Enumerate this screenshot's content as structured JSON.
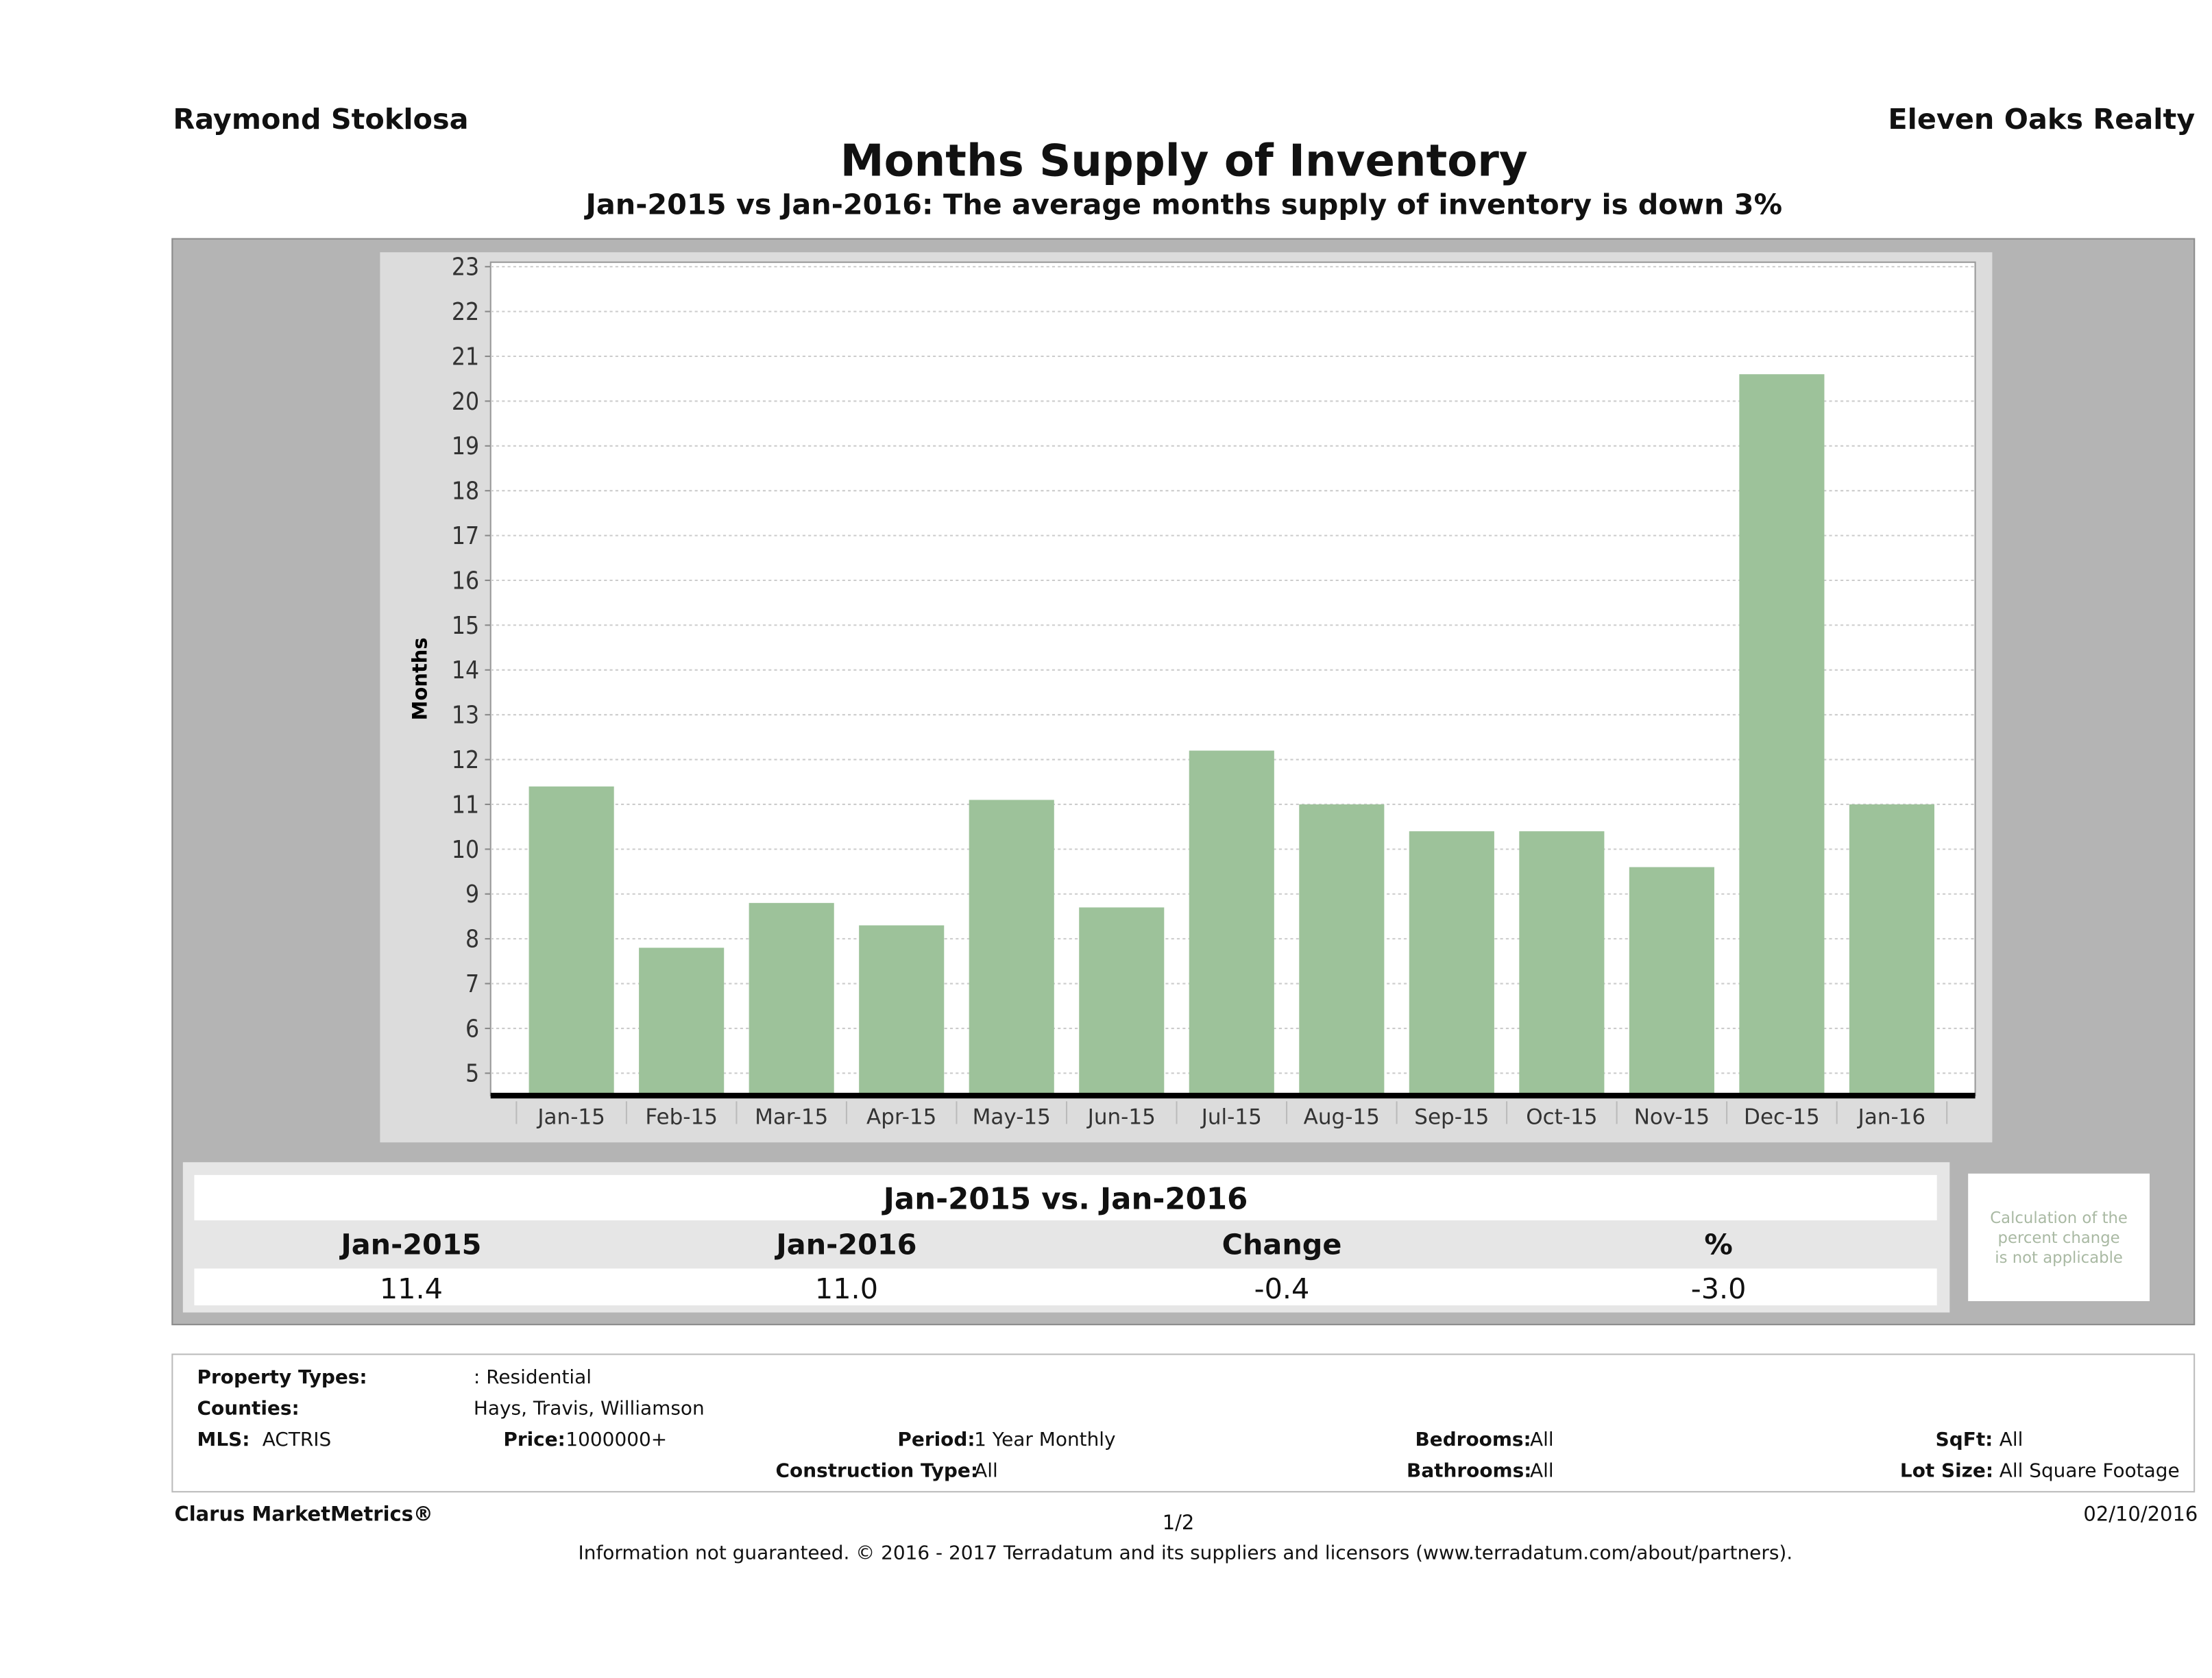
{
  "header": {
    "agent": "Raymond Stoklosa",
    "brokerage": "Eleven Oaks Realty",
    "title": "Months Supply of Inventory",
    "subtitle": "Jan-2015 vs Jan-2016: The average months supply of inventory is down 3%"
  },
  "chart_data": {
    "type": "bar",
    "title": "",
    "xlabel": "",
    "ylabel": "Months",
    "ylim": [
      4.5,
      23.1
    ],
    "yticks": [
      5,
      6,
      7,
      8,
      9,
      10,
      11,
      12,
      13,
      14,
      15,
      16,
      17,
      18,
      19,
      20,
      21,
      22,
      23
    ],
    "grid": true,
    "categories": [
      "Jan-15",
      "Feb-15",
      "Mar-15",
      "Apr-15",
      "May-15",
      "Jun-15",
      "Jul-15",
      "Aug-15",
      "Sep-15",
      "Oct-15",
      "Nov-15",
      "Dec-15",
      "Jan-16"
    ],
    "values": [
      11.4,
      7.8,
      8.8,
      8.3,
      11.1,
      8.7,
      12.2,
      11.0,
      10.4,
      10.4,
      9.6,
      20.6,
      11.0
    ],
    "bar_color": "#9dc29a"
  },
  "summary": {
    "heading": "Jan-2015 vs. Jan-2016",
    "columns": [
      "Jan-2015",
      "Jan-2016",
      "Change",
      "%"
    ],
    "values": [
      "11.4",
      "11.0",
      "-0.4",
      "-3.0"
    ],
    "note_lines": [
      "Calculation of the",
      "percent change",
      "is not applicable"
    ]
  },
  "info": {
    "property_types_label": "Property Types:",
    "property_types": ": Residential",
    "counties_label": "Counties:",
    "counties": "Hays, Travis, Williamson",
    "mls_label": "MLS:",
    "mls": "ACTRIS",
    "price_label": "Price:",
    "price": "1000000+",
    "period_label": "Period:",
    "period": "1 Year Monthly",
    "construction_label": "Construction Type:",
    "construction": "All",
    "bedrooms_label": "Bedrooms:",
    "bedrooms": "All",
    "bathrooms_label": "Bathrooms:",
    "bathrooms": "All",
    "sqft_label": "SqFt:",
    "sqft": "All",
    "lot_label": "Lot Size:",
    "lot": "All Square Footage"
  },
  "footer": {
    "brand": "Clarus MarketMetrics®",
    "page": "1/2",
    "date": "02/10/2016",
    "disclaimer": "Information not guaranteed. © 2016 - 2017 Terradatum and its suppliers and licensors (www.terradatum.com/about/partners)."
  }
}
